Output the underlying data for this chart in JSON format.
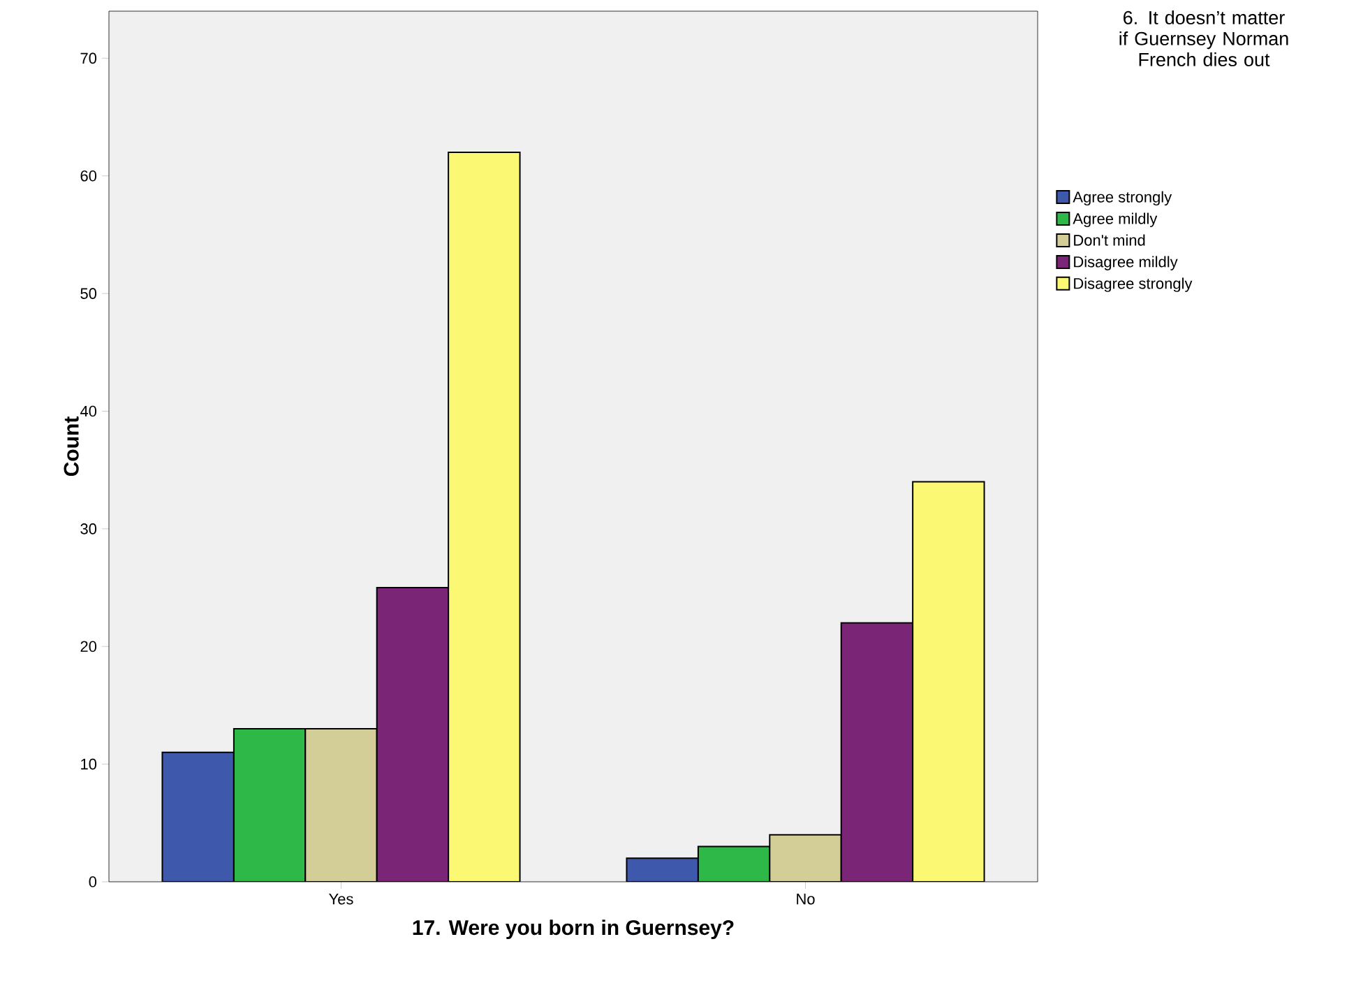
{
  "chart_data": {
    "type": "bar",
    "xlabel": "17. Were you born in Guernsey?",
    "ylabel": "Count",
    "legend_title": "6. It doesn’t matter if Guernsey Norman French dies out",
    "categories": [
      "Yes",
      "No"
    ],
    "series": [
      {
        "name": "Agree strongly",
        "color": "#3e58ac",
        "values": [
          11,
          2
        ]
      },
      {
        "name": "Agree mildly",
        "color": "#2eb848",
        "values": [
          13,
          3
        ]
      },
      {
        "name": "Don't mind",
        "color": "#d3ce97",
        "values": [
          13,
          4
        ]
      },
      {
        "name": "Disagree mildly",
        "color": "#7b2577",
        "values": [
          25,
          22
        ]
      },
      {
        "name": "Disagree strongly",
        "color": "#fbf873",
        "values": [
          62,
          34
        ]
      }
    ],
    "ylim": [
      0,
      74
    ],
    "yticks": [
      0,
      10,
      20,
      30,
      40,
      50,
      60,
      70
    ],
    "grid": false,
    "legend": "right"
  }
}
